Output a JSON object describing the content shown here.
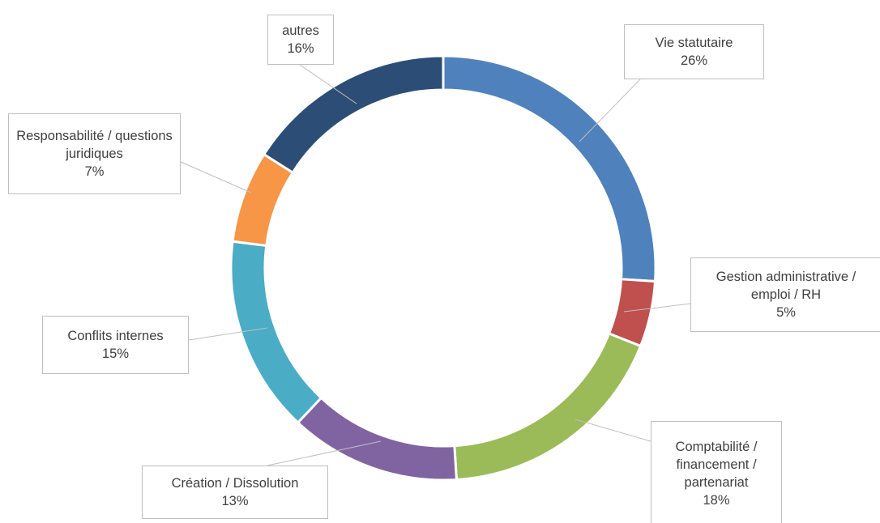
{
  "chart_data": {
    "type": "donut",
    "categories": [
      "Vie statutaire",
      "Gestion administrative / emploi / RH",
      "Comptabilité / financement / partenariat",
      "Création / Dissolution",
      "Conflits internes",
      "Responsabilité / questions juridiques",
      "autres"
    ],
    "values": [
      26,
      5,
      18,
      13,
      15,
      7,
      16
    ],
    "value_labels": [
      "26%",
      "5%",
      "18%",
      "13%",
      "15%",
      "7%",
      "16%"
    ],
    "colors": [
      "#4f81bd",
      "#c0504d",
      "#9bbb59",
      "#8064a2",
      "#4bacc6",
      "#f79646",
      "#2c4d75"
    ]
  }
}
